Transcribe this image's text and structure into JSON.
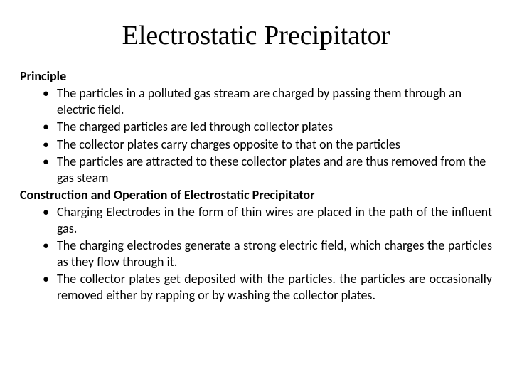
{
  "title": "Electrostatic Precipitator",
  "section1": {
    "heading": "Principle",
    "bullets": [
      "The particles in a polluted gas stream are charged by passing them through an electric field.",
      "The charged particles are led through collector plates",
      "The collector plates carry charges opposite to that on the particles",
      "The particles are attracted to these collector plates and are thus removed from the gas steam"
    ]
  },
  "section2": {
    "heading": "Construction and Operation of Electrostatic Precipitator",
    "bullets": [
      "Charging Electrodes in the form of thin wires are placed in the path of the influent gas.",
      "The charging electrodes generate a strong electric field, which charges the particles as they flow through it.",
      "The collector plates get deposited with the particles. the particles are occasionally removed either by rapping or by washing the collector plates."
    ]
  }
}
